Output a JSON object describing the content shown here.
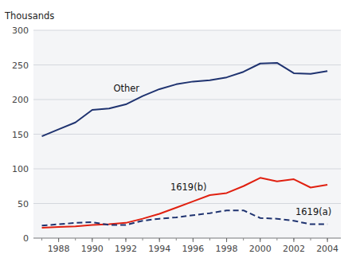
{
  "chart_data": {
    "type": "line",
    "ylabel": "Thousands",
    "x": [
      1987,
      1988,
      1989,
      1990,
      1991,
      1992,
      1993,
      1994,
      1995,
      1996,
      1997,
      1998,
      1999,
      2000,
      2001,
      2002,
      2003,
      2004
    ],
    "series": [
      {
        "name": "Other",
        "color": "#1f3370",
        "line_style": "solid",
        "values": [
          147,
          157,
          167,
          185,
          187,
          193,
          205,
          215,
          222,
          226,
          228,
          232,
          240,
          252,
          253,
          238,
          237,
          241
        ]
      },
      {
        "name": "1619(b)",
        "color": "#e02010",
        "line_style": "solid",
        "values": [
          15,
          16,
          17,
          19,
          20,
          22,
          28,
          35,
          44,
          53,
          62,
          65,
          75,
          87,
          82,
          85,
          73,
          77
        ]
      },
      {
        "name": "1619(a)",
        "color": "#1f3370",
        "line_style": "dashed",
        "values": [
          18,
          20,
          22,
          23,
          19,
          19,
          25,
          28,
          30,
          33,
          36,
          40,
          40,
          29,
          28,
          25,
          20,
          20
        ]
      }
    ],
    "xlim": [
      1986.5,
      2004.8
    ],
    "xticks": [
      1988,
      1990,
      1992,
      1994,
      1996,
      1998,
      2000,
      2002,
      2004
    ],
    "ylim": [
      0,
      300
    ],
    "yticks": [
      0,
      50,
      100,
      150,
      200,
      250,
      300
    ],
    "grid": true
  }
}
